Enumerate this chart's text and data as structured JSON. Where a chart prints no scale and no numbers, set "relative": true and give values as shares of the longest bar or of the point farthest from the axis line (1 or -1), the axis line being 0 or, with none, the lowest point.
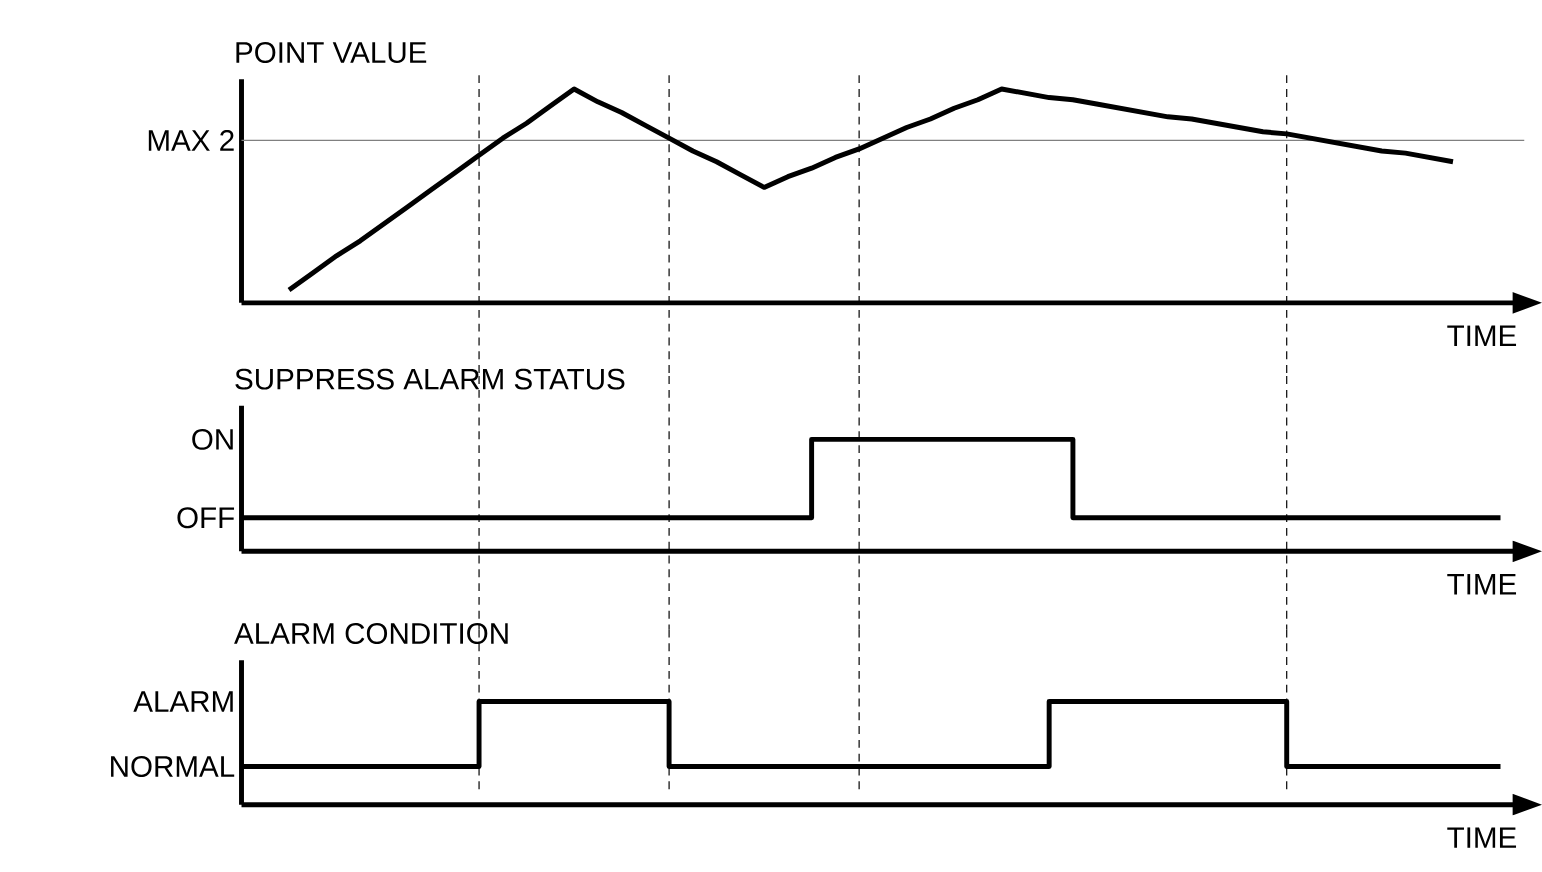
{
  "chart_data": [
    {
      "type": "line",
      "title": "POINT VALUE",
      "xlabel": "TIME",
      "relative": true,
      "grid": "x",
      "categories": [
        null,
        null,
        null,
        null,
        null,
        null,
        null,
        null,
        null,
        null,
        null,
        null,
        null,
        null,
        null,
        null,
        null,
        null,
        null,
        null,
        null,
        null,
        null,
        null,
        null,
        null,
        null,
        null,
        null,
        null,
        null,
        null,
        null,
        null,
        null,
        null,
        null,
        null,
        null,
        null,
        null,
        null,
        null,
        null,
        null,
        null,
        null,
        null,
        null,
        null,
        null,
        null,
        null,
        null
      ],
      "series": [
        {
          "color": "#000000",
          "values": [
            null,
            null,
            0.06,
            0.14,
            0.22,
            0.29,
            0.37,
            0.45,
            0.53,
            0.61,
            0.69,
            0.77,
            0.84,
            0.92,
            1,
            0.94,
            0.89,
            0.83,
            0.77,
            0.71,
            0.66,
            0.6,
            0.54,
            0.59,
            0.63,
            0.68,
            0.72,
            0.77,
            0.82,
            0.86,
            0.91,
            0.95,
            1,
            0.98,
            0.96,
            0.95,
            0.93,
            0.91,
            0.89,
            0.87,
            0.86,
            0.84,
            0.82,
            0.8,
            0.79,
            0.77,
            0.75,
            0.73,
            0.71,
            0.7,
            0.68,
            0.66,
            null,
            null
          ]
        }
      ],
      "ref_lines": [
        {
          "axis": "y",
          "value": 0.76,
          "label": "MAX 2",
          "color": "#808080",
          "line_style": "solid"
        }
      ]
    },
    {
      "type": "step",
      "title": "SUPPRESS ALARM STATUS",
      "xlabel": "TIME",
      "relative": true,
      "grid": "x",
      "categories": [
        null,
        null,
        null,
        null,
        null,
        null,
        null,
        null,
        null,
        null,
        null,
        null,
        null,
        null,
        null,
        null,
        null,
        null,
        null,
        null,
        null,
        null,
        null,
        null,
        null,
        null,
        null,
        null,
        null,
        null,
        null,
        null,
        null,
        null,
        null,
        null,
        null,
        null,
        null,
        null,
        null,
        null,
        null,
        null,
        null,
        null,
        null,
        null,
        null,
        null,
        null,
        null,
        null,
        null
      ],
      "annotations": [
        "OFF",
        "ON"
      ],
      "series": [
        {
          "color": "#000000",
          "values": [
            0.3,
            0.3,
            0.3,
            0.3,
            0.3,
            0.3,
            0.3,
            0.3,
            0.3,
            0.3,
            0.3,
            0.3,
            0.3,
            0.3,
            0.3,
            0.3,
            0.3,
            0.3,
            0.3,
            0.3,
            0.3,
            0.3,
            0.3,
            0.3,
            1,
            1,
            1,
            1,
            1,
            1,
            1,
            1,
            1,
            1,
            1,
            0.3,
            0.3,
            0.3,
            0.3,
            0.3,
            0.3,
            0.3,
            0.3,
            0.3,
            0.3,
            0.3,
            0.3,
            0.3,
            0.3,
            0.3,
            0.3,
            0.3,
            0.3,
            0.3
          ]
        }
      ]
    },
    {
      "type": "step",
      "title": "ALARM CONDITION",
      "xlabel": "TIME",
      "relative": true,
      "grid": "x",
      "categories": [
        null,
        null,
        null,
        null,
        null,
        null,
        null,
        null,
        null,
        null,
        null,
        null,
        null,
        null,
        null,
        null,
        null,
        null,
        null,
        null,
        null,
        null,
        null,
        null,
        null,
        null,
        null,
        null,
        null,
        null,
        null,
        null,
        null,
        null,
        null,
        null,
        null,
        null,
        null,
        null,
        null,
        null,
        null,
        null,
        null,
        null,
        null,
        null,
        null,
        null,
        null,
        null,
        null,
        null
      ],
      "annotations": [
        "NORMAL",
        "ALARM"
      ],
      "series": [
        {
          "color": "#000000",
          "values": [
            0.37,
            0.37,
            0.37,
            0.37,
            0.37,
            0.37,
            0.37,
            0.37,
            0.37,
            0.37,
            1,
            1,
            1,
            1,
            1,
            1,
            1,
            1,
            0.37,
            0.37,
            0.37,
            0.37,
            0.37,
            0.37,
            0.37,
            0.37,
            0.37,
            0.37,
            0.37,
            0.37,
            0.37,
            0.37,
            0.37,
            0.37,
            1,
            1,
            1,
            1,
            1,
            1,
            1,
            1,
            1,
            1,
            0.37,
            0.37,
            0.37,
            0.37,
            0.37,
            0.37,
            0.37,
            0.37,
            0.37,
            0.37
          ]
        }
      ]
    }
  ]
}
